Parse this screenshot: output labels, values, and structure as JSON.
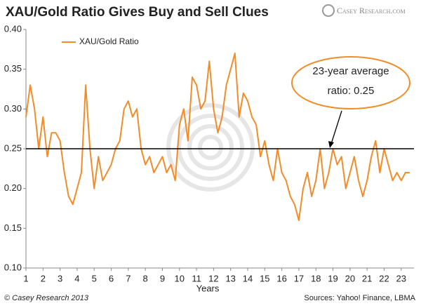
{
  "chart_data": {
    "type": "line",
    "title": "XAU/Gold Ratio Gives Buy and Sell Clues",
    "logo": "Casey Research.com",
    "x_label": "Years",
    "credit": "© Casey Research 2013",
    "source": "Sources: Yahoo! Finance, LBMA",
    "annotation": [
      "23-year average",
      "ratio: 0.25"
    ],
    "average": 0.25,
    "average_color": "#000000",
    "xlim": [
      1,
      23.75
    ],
    "xticks": [
      1,
      2,
      3,
      4,
      5,
      6,
      7,
      8,
      9,
      10,
      11,
      12,
      13,
      14,
      15,
      16,
      17,
      18,
      19,
      20,
      21,
      22,
      23
    ],
    "ylim": [
      0.1,
      0.4
    ],
    "yticks": [
      {
        "value": 0.1,
        "label": "0.10"
      },
      {
        "value": 0.15,
        "label": "0.15"
      },
      {
        "value": 0.2,
        "label": "0.20"
      },
      {
        "value": 0.25,
        "label": "0.25"
      },
      {
        "value": 0.3,
        "label": "0.30"
      },
      {
        "value": 0.35,
        "label": "0.35"
      },
      {
        "value": 0.4,
        "label": "0.40"
      }
    ],
    "legend": "top-left",
    "x": [
      1,
      1.25,
      1.5,
      1.75,
      2,
      2.25,
      2.5,
      2.75,
      3,
      3.25,
      3.5,
      3.75,
      4,
      4.25,
      4.5,
      4.75,
      5,
      5.25,
      5.5,
      5.75,
      6,
      6.25,
      6.5,
      6.75,
      7,
      7.25,
      7.5,
      7.75,
      8,
      8.25,
      8.5,
      8.75,
      9,
      9.25,
      9.5,
      9.75,
      10,
      10.25,
      10.5,
      10.75,
      11,
      11.25,
      11.5,
      11.75,
      12,
      12.25,
      12.5,
      12.75,
      13,
      13.25,
      13.5,
      13.75,
      14,
      14.25,
      14.5,
      14.75,
      15,
      15.25,
      15.5,
      15.75,
      16,
      16.25,
      16.5,
      16.75,
      17,
      17.25,
      17.5,
      17.75,
      18,
      18.25,
      18.5,
      18.75,
      19,
      19.25,
      19.5,
      19.75,
      20,
      20.25,
      20.5,
      20.75,
      21,
      21.25,
      21.5,
      21.75,
      22,
      22.25,
      22.5,
      22.75,
      23,
      23.25,
      23.5
    ],
    "series": [
      {
        "name": "XAU/Gold Ratio",
        "color": "#f28c28",
        "values": [
          0.29,
          0.33,
          0.3,
          0.25,
          0.29,
          0.24,
          0.27,
          0.27,
          0.26,
          0.22,
          0.19,
          0.18,
          0.2,
          0.22,
          0.33,
          0.25,
          0.2,
          0.24,
          0.21,
          0.22,
          0.23,
          0.25,
          0.26,
          0.3,
          0.31,
          0.29,
          0.3,
          0.25,
          0.23,
          0.24,
          0.22,
          0.23,
          0.24,
          0.22,
          0.23,
          0.21,
          0.28,
          0.3,
          0.26,
          0.34,
          0.33,
          0.3,
          0.31,
          0.36,
          0.3,
          0.27,
          0.29,
          0.33,
          0.35,
          0.37,
          0.29,
          0.32,
          0.31,
          0.29,
          0.28,
          0.24,
          0.26,
          0.23,
          0.21,
          0.25,
          0.22,
          0.21,
          0.19,
          0.18,
          0.16,
          0.2,
          0.22,
          0.19,
          0.21,
          0.25,
          0.2,
          0.22,
          0.25,
          0.23,
          0.24,
          0.2,
          0.22,
          0.24,
          0.21,
          0.19,
          0.21,
          0.24,
          0.26,
          0.22,
          0.25,
          0.23,
          0.21,
          0.22,
          0.21,
          0.22,
          0.22
        ]
      }
    ]
  }
}
